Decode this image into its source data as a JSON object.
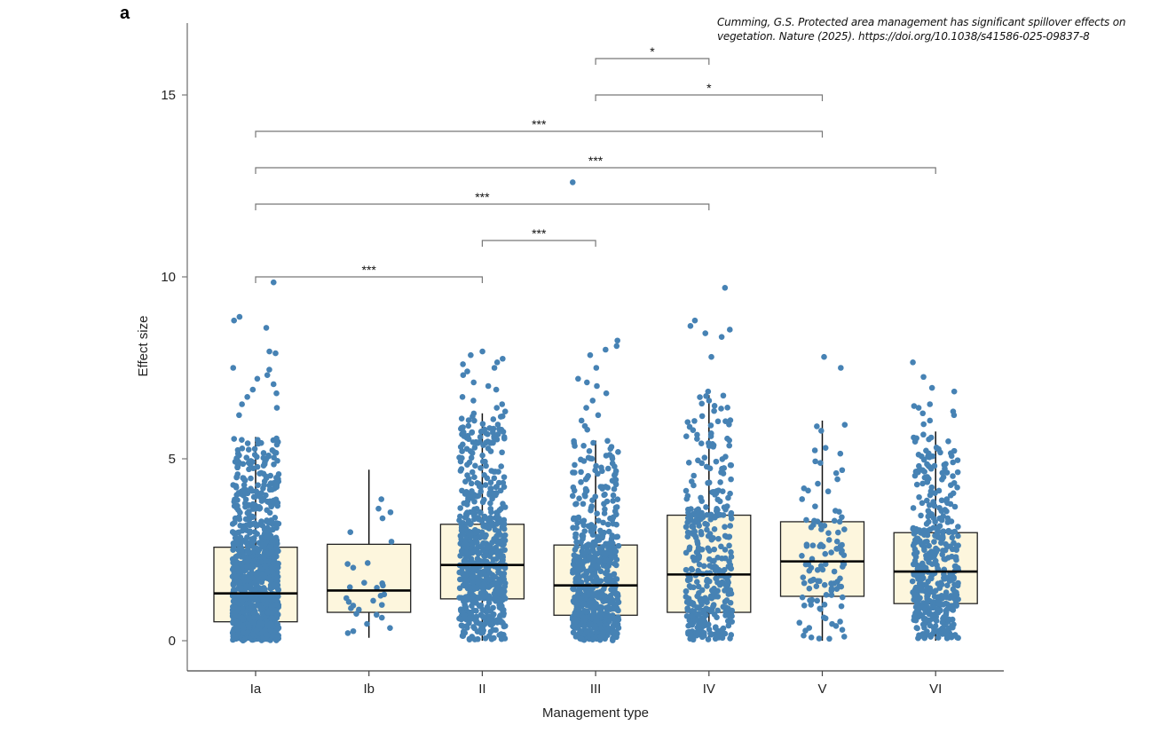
{
  "panel_label": "a",
  "citation": "Cumming, G.S. Protected area management has significant spillover effects on vegetation. Nature (2025). https://doi.org/10.1038/s41586-025-09837-8",
  "colors": {
    "point": "#4682b4",
    "box_fill": "#fdf6dd",
    "box_stroke": "#222222",
    "bracket": "#777777",
    "axis": "#777777"
  },
  "chart_data": {
    "type": "box-strip",
    "title": "",
    "xlabel": "Management type",
    "ylabel": "Effect size",
    "ylim": [
      -0.8,
      17.2
    ],
    "yticks": [
      0,
      5,
      10,
      15
    ],
    "ytick_labels": [
      "0",
      "5",
      "10",
      "15"
    ],
    "categories": [
      "Ia",
      "Ib",
      "II",
      "III",
      "IV",
      "V",
      "VI"
    ],
    "boxes": [
      {
        "name": "Ia",
        "q1": 0.52,
        "median": 1.3,
        "q3": 2.57,
        "whisker_low": 0.0,
        "whisker_high": 5.6,
        "n_approx": 1100,
        "outliers": [
          9.85,
          8.9,
          8.8,
          8.6,
          7.95,
          7.9,
          7.5,
          7.45,
          7.3,
          7.2,
          7.05,
          6.9,
          6.8,
          6.7,
          6.5,
          6.4,
          6.2
        ]
      },
      {
        "name": "Ib",
        "q1": 0.78,
        "median": 1.38,
        "q3": 2.65,
        "whisker_low": 0.08,
        "whisker_high": 4.7,
        "n_approx": 30,
        "outliers": []
      },
      {
        "name": "II",
        "q1": 1.15,
        "median": 2.08,
        "q3": 3.2,
        "whisker_low": 0.0,
        "whisker_high": 6.25,
        "n_approx": 650,
        "outliers": [
          7.95,
          7.85,
          7.75,
          7.65,
          7.6,
          7.5,
          7.4,
          7.3,
          7.1,
          7.0,
          6.9,
          6.7,
          6.6,
          6.5,
          6.4,
          6.3
        ]
      },
      {
        "name": "III",
        "q1": 0.7,
        "median": 1.52,
        "q3": 2.63,
        "whisker_low": 0.0,
        "whisker_high": 5.5,
        "n_approx": 600,
        "outliers": [
          12.6,
          8.25,
          8.1,
          8.0,
          7.85,
          7.5,
          7.2,
          7.1,
          7.0,
          6.8,
          6.6,
          6.4,
          6.2,
          6.05,
          5.9,
          5.8
        ]
      },
      {
        "name": "IV",
        "q1": 0.78,
        "median": 1.82,
        "q3": 3.45,
        "whisker_low": 0.0,
        "whisker_high": 6.75,
        "n_approx": 380,
        "outliers": [
          9.7,
          8.8,
          8.65,
          8.55,
          8.45,
          8.35,
          7.8,
          6.85
        ]
      },
      {
        "name": "V",
        "q1": 1.22,
        "median": 2.18,
        "q3": 3.27,
        "whisker_low": 0.0,
        "whisker_high": 6.05,
        "n_approx": 110,
        "outliers": [
          7.8,
          7.5
        ]
      },
      {
        "name": "VI",
        "q1": 1.02,
        "median": 1.9,
        "q3": 2.97,
        "whisker_low": 0.0,
        "whisker_high": 5.75,
        "n_approx": 430,
        "outliers": [
          7.65,
          7.25,
          6.95,
          6.85,
          6.5,
          6.45,
          6.4,
          6.3,
          6.25,
          6.2,
          6.05,
          5.95
        ]
      }
    ],
    "significance": [
      {
        "from": "III",
        "to": "IV",
        "y": 16.0,
        "label": "*"
      },
      {
        "from": "III",
        "to": "V",
        "y": 15.0,
        "label": "*"
      },
      {
        "from": "Ia",
        "to": "V",
        "y": 14.0,
        "label": "***"
      },
      {
        "from": "Ia",
        "to": "VI",
        "y": 13.0,
        "label": "***"
      },
      {
        "from": "Ia",
        "to": "IV",
        "y": 12.0,
        "label": "***"
      },
      {
        "from": "II",
        "to": "III",
        "y": 11.0,
        "label": "***"
      },
      {
        "from": "Ia",
        "to": "II",
        "y": 10.0,
        "label": "***"
      }
    ],
    "grid": false,
    "legend": "none"
  }
}
